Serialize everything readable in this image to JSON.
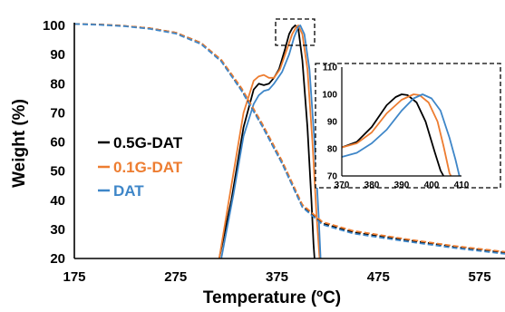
{
  "colors": {
    "black": "#000000",
    "orange": "#ED7D31",
    "blue": "#3E86C8"
  },
  "chart_data": [
    {
      "type": "line",
      "title": "",
      "xlabel": "Temperature (ºC)",
      "ylabel": "Weight (%)",
      "xlim": [
        175,
        600
      ],
      "ylim": [
        20,
        105
      ],
      "x_ticks": [
        "175",
        "275",
        "375",
        "475",
        "575"
      ],
      "y_ticks": [
        "20",
        "30",
        "40",
        "50",
        "60",
        "70",
        "80",
        "90",
        "100"
      ],
      "legend": {
        "placement": "center-left",
        "entries": [
          "0.5G-DAT",
          "0.1G-DAT",
          "DAT"
        ]
      },
      "grid": false,
      "series": [
        {
          "name": "0.5G-DAT",
          "style": "solid",
          "color": "#000000",
          "points": [
            [
              318,
              20
            ],
            [
              330,
              40
            ],
            [
              342,
              65
            ],
            [
              352,
              78
            ],
            [
              357,
              80
            ],
            [
              362,
              79.5
            ],
            [
              367,
              80
            ],
            [
              372,
              82
            ],
            [
              377,
              85
            ],
            [
              383,
              92
            ],
            [
              387,
              97
            ],
            [
              390,
              99
            ],
            [
              393,
              100
            ],
            [
              396,
              99
            ],
            [
              400,
              88
            ],
            [
              405,
              65
            ],
            [
              409,
              40
            ],
            [
              411,
              25
            ],
            [
              412,
              20
            ]
          ]
        },
        {
          "name": "0.1G-DAT",
          "style": "solid",
          "color": "#ED7D31",
          "points": [
            [
              318,
              20
            ],
            [
              330,
              45
            ],
            [
              342,
              70
            ],
            [
              352,
              81
            ],
            [
              357,
              82.5
            ],
            [
              362,
              83
            ],
            [
              367,
              82
            ],
            [
              372,
              82
            ],
            [
              378,
              85
            ],
            [
              385,
              92
            ],
            [
              390,
              97
            ],
            [
              394,
              99.5
            ],
            [
              396,
              100
            ],
            [
              400,
              97
            ],
            [
              405,
              85
            ],
            [
              410,
              60
            ],
            [
              414,
              35
            ],
            [
              417,
              20
            ]
          ]
        },
        {
          "name": "DAT",
          "style": "solid",
          "color": "#3E86C8",
          "points": [
            [
              320,
              20
            ],
            [
              332,
              42
            ],
            [
              342,
              62
            ],
            [
              352,
              73
            ],
            [
              357,
              76
            ],
            [
              362,
              77.5
            ],
            [
              367,
              78
            ],
            [
              372,
              80
            ],
            [
              380,
              84
            ],
            [
              387,
              90
            ],
            [
              392,
              96
            ],
            [
              396,
              99.5
            ],
            [
              398,
              100
            ],
            [
              402,
              97
            ],
            [
              407,
              85
            ],
            [
              412,
              60
            ],
            [
              416,
              35
            ],
            [
              418,
              20
            ]
          ]
        },
        {
          "name": "0.5G-DAT",
          "style": "dashed",
          "color": "#000000",
          "points": [
            [
              175,
              100.5
            ],
            [
              200,
              100.3
            ],
            [
              225,
              99.8
            ],
            [
              250,
              99
            ],
            [
              275,
              97.5
            ],
            [
              300,
              94
            ],
            [
              320,
              88
            ],
            [
              340,
              78
            ],
            [
              360,
              66
            ],
            [
              380,
              53
            ],
            [
              400,
              38
            ],
            [
              420,
              32
            ],
            [
              450,
              29
            ],
            [
              500,
              26.5
            ],
            [
              550,
              24
            ],
            [
              600,
              22
            ]
          ]
        },
        {
          "name": "0.1G-DAT",
          "style": "dashed",
          "color": "#ED7D31",
          "points": [
            [
              175,
              100.5
            ],
            [
              200,
              100.3
            ],
            [
              225,
              99.8
            ],
            [
              250,
              99
            ],
            [
              275,
              97.5
            ],
            [
              300,
              94
            ],
            [
              320,
              88.2
            ],
            [
              340,
              78.5
            ],
            [
              360,
              66.5
            ],
            [
              380,
              53.5
            ],
            [
              400,
              38.5
            ],
            [
              420,
              32.5
            ],
            [
              450,
              29.5
            ],
            [
              500,
              26.8
            ],
            [
              550,
              24.3
            ],
            [
              600,
              22.3
            ]
          ]
        },
        {
          "name": "DAT",
          "style": "dashed",
          "color": "#3E86C8",
          "points": [
            [
              175,
              100.5
            ],
            [
              200,
              100.2
            ],
            [
              225,
              99.7
            ],
            [
              250,
              98.8
            ],
            [
              275,
              97.2
            ],
            [
              300,
              93.6
            ],
            [
              320,
              87.6
            ],
            [
              340,
              77.6
            ],
            [
              360,
              65.6
            ],
            [
              380,
              52.6
            ],
            [
              400,
              37.6
            ],
            [
              420,
              31.6
            ],
            [
              450,
              28.6
            ],
            [
              500,
              26
            ],
            [
              550,
              23.6
            ],
            [
              600,
              21.6
            ]
          ]
        }
      ]
    },
    {
      "type": "line",
      "title": "",
      "xlim": [
        370,
        410
      ],
      "ylim": [
        70,
        110
      ],
      "x_ticks": [
        "370",
        "380",
        "390",
        "400",
        "410"
      ],
      "y_ticks": [
        "70",
        "80",
        "90",
        "100",
        "110"
      ],
      "series": [
        {
          "name": "0.5G-DAT",
          "color": "#000000",
          "points": [
            [
              370,
              80.5
            ],
            [
              375,
              82.5
            ],
            [
              380,
              88
            ],
            [
              385,
              96
            ],
            [
              388,
              99
            ],
            [
              390,
              100
            ],
            [
              392,
              99.7
            ],
            [
              395,
              97
            ],
            [
              398,
              90
            ],
            [
              401,
              79
            ],
            [
              403,
              72
            ],
            [
              404,
              70
            ]
          ]
        },
        {
          "name": "0.1G-DAT",
          "color": "#ED7D31",
          "points": [
            [
              370,
              80.5
            ],
            [
              375,
              82
            ],
            [
              380,
              86
            ],
            [
              385,
              93
            ],
            [
              390,
              98
            ],
            [
              394,
              100
            ],
            [
              396,
              99.7
            ],
            [
              399,
              97
            ],
            [
              402,
              90
            ],
            [
              404,
              81
            ],
            [
              406,
              71
            ],
            [
              406.5,
              70
            ]
          ]
        },
        {
          "name": "DAT",
          "color": "#3E86C8",
          "points": [
            [
              370,
              77
            ],
            [
              375,
              78.5
            ],
            [
              380,
              82
            ],
            [
              385,
              87
            ],
            [
              390,
              94
            ],
            [
              394,
              98.5
            ],
            [
              397,
              100
            ],
            [
              400,
              98.5
            ],
            [
              403,
              94
            ],
            [
              406,
              84
            ],
            [
              408,
              76
            ],
            [
              409.3,
              70
            ]
          ]
        }
      ]
    }
  ]
}
